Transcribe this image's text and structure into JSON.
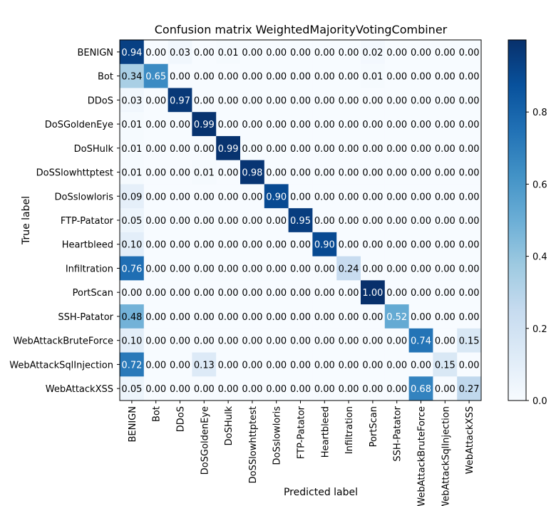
{
  "chart_data": {
    "type": "heatmap",
    "title": "Confusion matrix WeightedMajorityVotingCombiner",
    "xlabel": "Predicted label",
    "ylabel": "True label",
    "rows": [
      "BENIGN",
      "Bot",
      "DDoS",
      "DoSGoldenEye",
      "DoSHulk",
      "DoSSlowhttptest",
      "DoSslowloris",
      "FTP-Patator",
      "Heartbleed",
      "Infiltration",
      "PortScan",
      "SSH-Patator",
      "WebAttackBruteForce",
      "WebAttackSqlInjection",
      "WebAttackXSS"
    ],
    "columns": [
      "BENIGN",
      "Bot",
      "DDoS",
      "DoSGoldenEye",
      "DoSHulk",
      "DoSSlowhttptest",
      "DoSslowloris",
      "FTP-Patator",
      "Heartbleed",
      "Infiltration",
      "PortScan",
      "SSH-Patator",
      "WebAttackBruteForce",
      "WebAttackSqlInjection",
      "WebAttackXSS"
    ],
    "values": [
      [
        0.94,
        0.0,
        0.03,
        0.0,
        0.01,
        0.0,
        0.0,
        0.0,
        0.0,
        0.0,
        0.02,
        0.0,
        0.0,
        0.0,
        0.0
      ],
      [
        0.34,
        0.65,
        0.0,
        0.0,
        0.0,
        0.0,
        0.0,
        0.0,
        0.0,
        0.0,
        0.01,
        0.0,
        0.0,
        0.0,
        0.0
      ],
      [
        0.03,
        0.0,
        0.97,
        0.0,
        0.0,
        0.0,
        0.0,
        0.0,
        0.0,
        0.0,
        0.0,
        0.0,
        0.0,
        0.0,
        0.0
      ],
      [
        0.01,
        0.0,
        0.0,
        0.99,
        0.0,
        0.0,
        0.0,
        0.0,
        0.0,
        0.0,
        0.0,
        0.0,
        0.0,
        0.0,
        0.0
      ],
      [
        0.01,
        0.0,
        0.0,
        0.0,
        0.99,
        0.0,
        0.0,
        0.0,
        0.0,
        0.0,
        0.0,
        0.0,
        0.0,
        0.0,
        0.0
      ],
      [
        0.01,
        0.0,
        0.0,
        0.01,
        0.0,
        0.98,
        0.0,
        0.0,
        0.0,
        0.0,
        0.0,
        0.0,
        0.0,
        0.0,
        0.0
      ],
      [
        0.09,
        0.0,
        0.0,
        0.0,
        0.0,
        0.0,
        0.9,
        0.0,
        0.0,
        0.0,
        0.0,
        0.0,
        0.0,
        0.0,
        0.0
      ],
      [
        0.05,
        0.0,
        0.0,
        0.0,
        0.0,
        0.0,
        0.0,
        0.95,
        0.0,
        0.0,
        0.0,
        0.0,
        0.0,
        0.0,
        0.0
      ],
      [
        0.1,
        0.0,
        0.0,
        0.0,
        0.0,
        0.0,
        0.0,
        0.0,
        0.9,
        0.0,
        0.0,
        0.0,
        0.0,
        0.0,
        0.0
      ],
      [
        0.76,
        0.0,
        0.0,
        0.0,
        0.0,
        0.0,
        0.0,
        0.0,
        0.0,
        0.24,
        0.0,
        0.0,
        0.0,
        0.0,
        0.0
      ],
      [
        0.0,
        0.0,
        0.0,
        0.0,
        0.0,
        0.0,
        0.0,
        0.0,
        0.0,
        0.0,
        1.0,
        0.0,
        0.0,
        0.0,
        0.0
      ],
      [
        0.48,
        0.0,
        0.0,
        0.0,
        0.0,
        0.0,
        0.0,
        0.0,
        0.0,
        0.0,
        0.0,
        0.52,
        0.0,
        0.0,
        0.0
      ],
      [
        0.1,
        0.0,
        0.0,
        0.0,
        0.0,
        0.0,
        0.0,
        0.0,
        0.0,
        0.0,
        0.0,
        0.0,
        0.74,
        0.0,
        0.15
      ],
      [
        0.72,
        0.0,
        0.0,
        0.13,
        0.0,
        0.0,
        0.0,
        0.0,
        0.0,
        0.0,
        0.0,
        0.0,
        0.0,
        0.15,
        0.0
      ],
      [
        0.05,
        0.0,
        0.0,
        0.0,
        0.0,
        0.0,
        0.0,
        0.0,
        0.0,
        0.0,
        0.0,
        0.0,
        0.68,
        0.0,
        0.27
      ]
    ],
    "colormap": "Blues",
    "vmin": 0.0,
    "vmax": 1.0,
    "colorbar_ticks": [
      "0.0",
      "0.2",
      "0.4",
      "0.6",
      "0.8"
    ],
    "legend_placement": "right"
  }
}
